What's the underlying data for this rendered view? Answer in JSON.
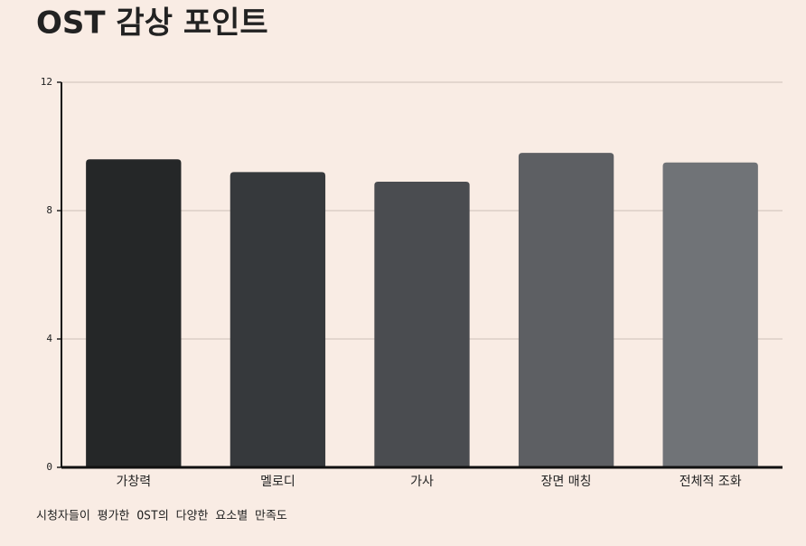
{
  "chart_data": {
    "type": "bar",
    "title": "OST 감상 포인트",
    "caption": "시청자들이 평가한 OST의 다양한 요소별 만족도",
    "categories": [
      "가창력",
      "멜로디",
      "가사",
      "장면 매칭",
      "전체적 조화"
    ],
    "values": [
      9.6,
      9.2,
      8.9,
      9.8,
      9.5
    ],
    "colors": [
      "#252728",
      "#36393c",
      "#4a4c50",
      "#5d5f63",
      "#707377"
    ],
    "ylim": [
      0,
      12
    ],
    "yticks": [
      0,
      4,
      8,
      12
    ],
    "grid": true
  }
}
